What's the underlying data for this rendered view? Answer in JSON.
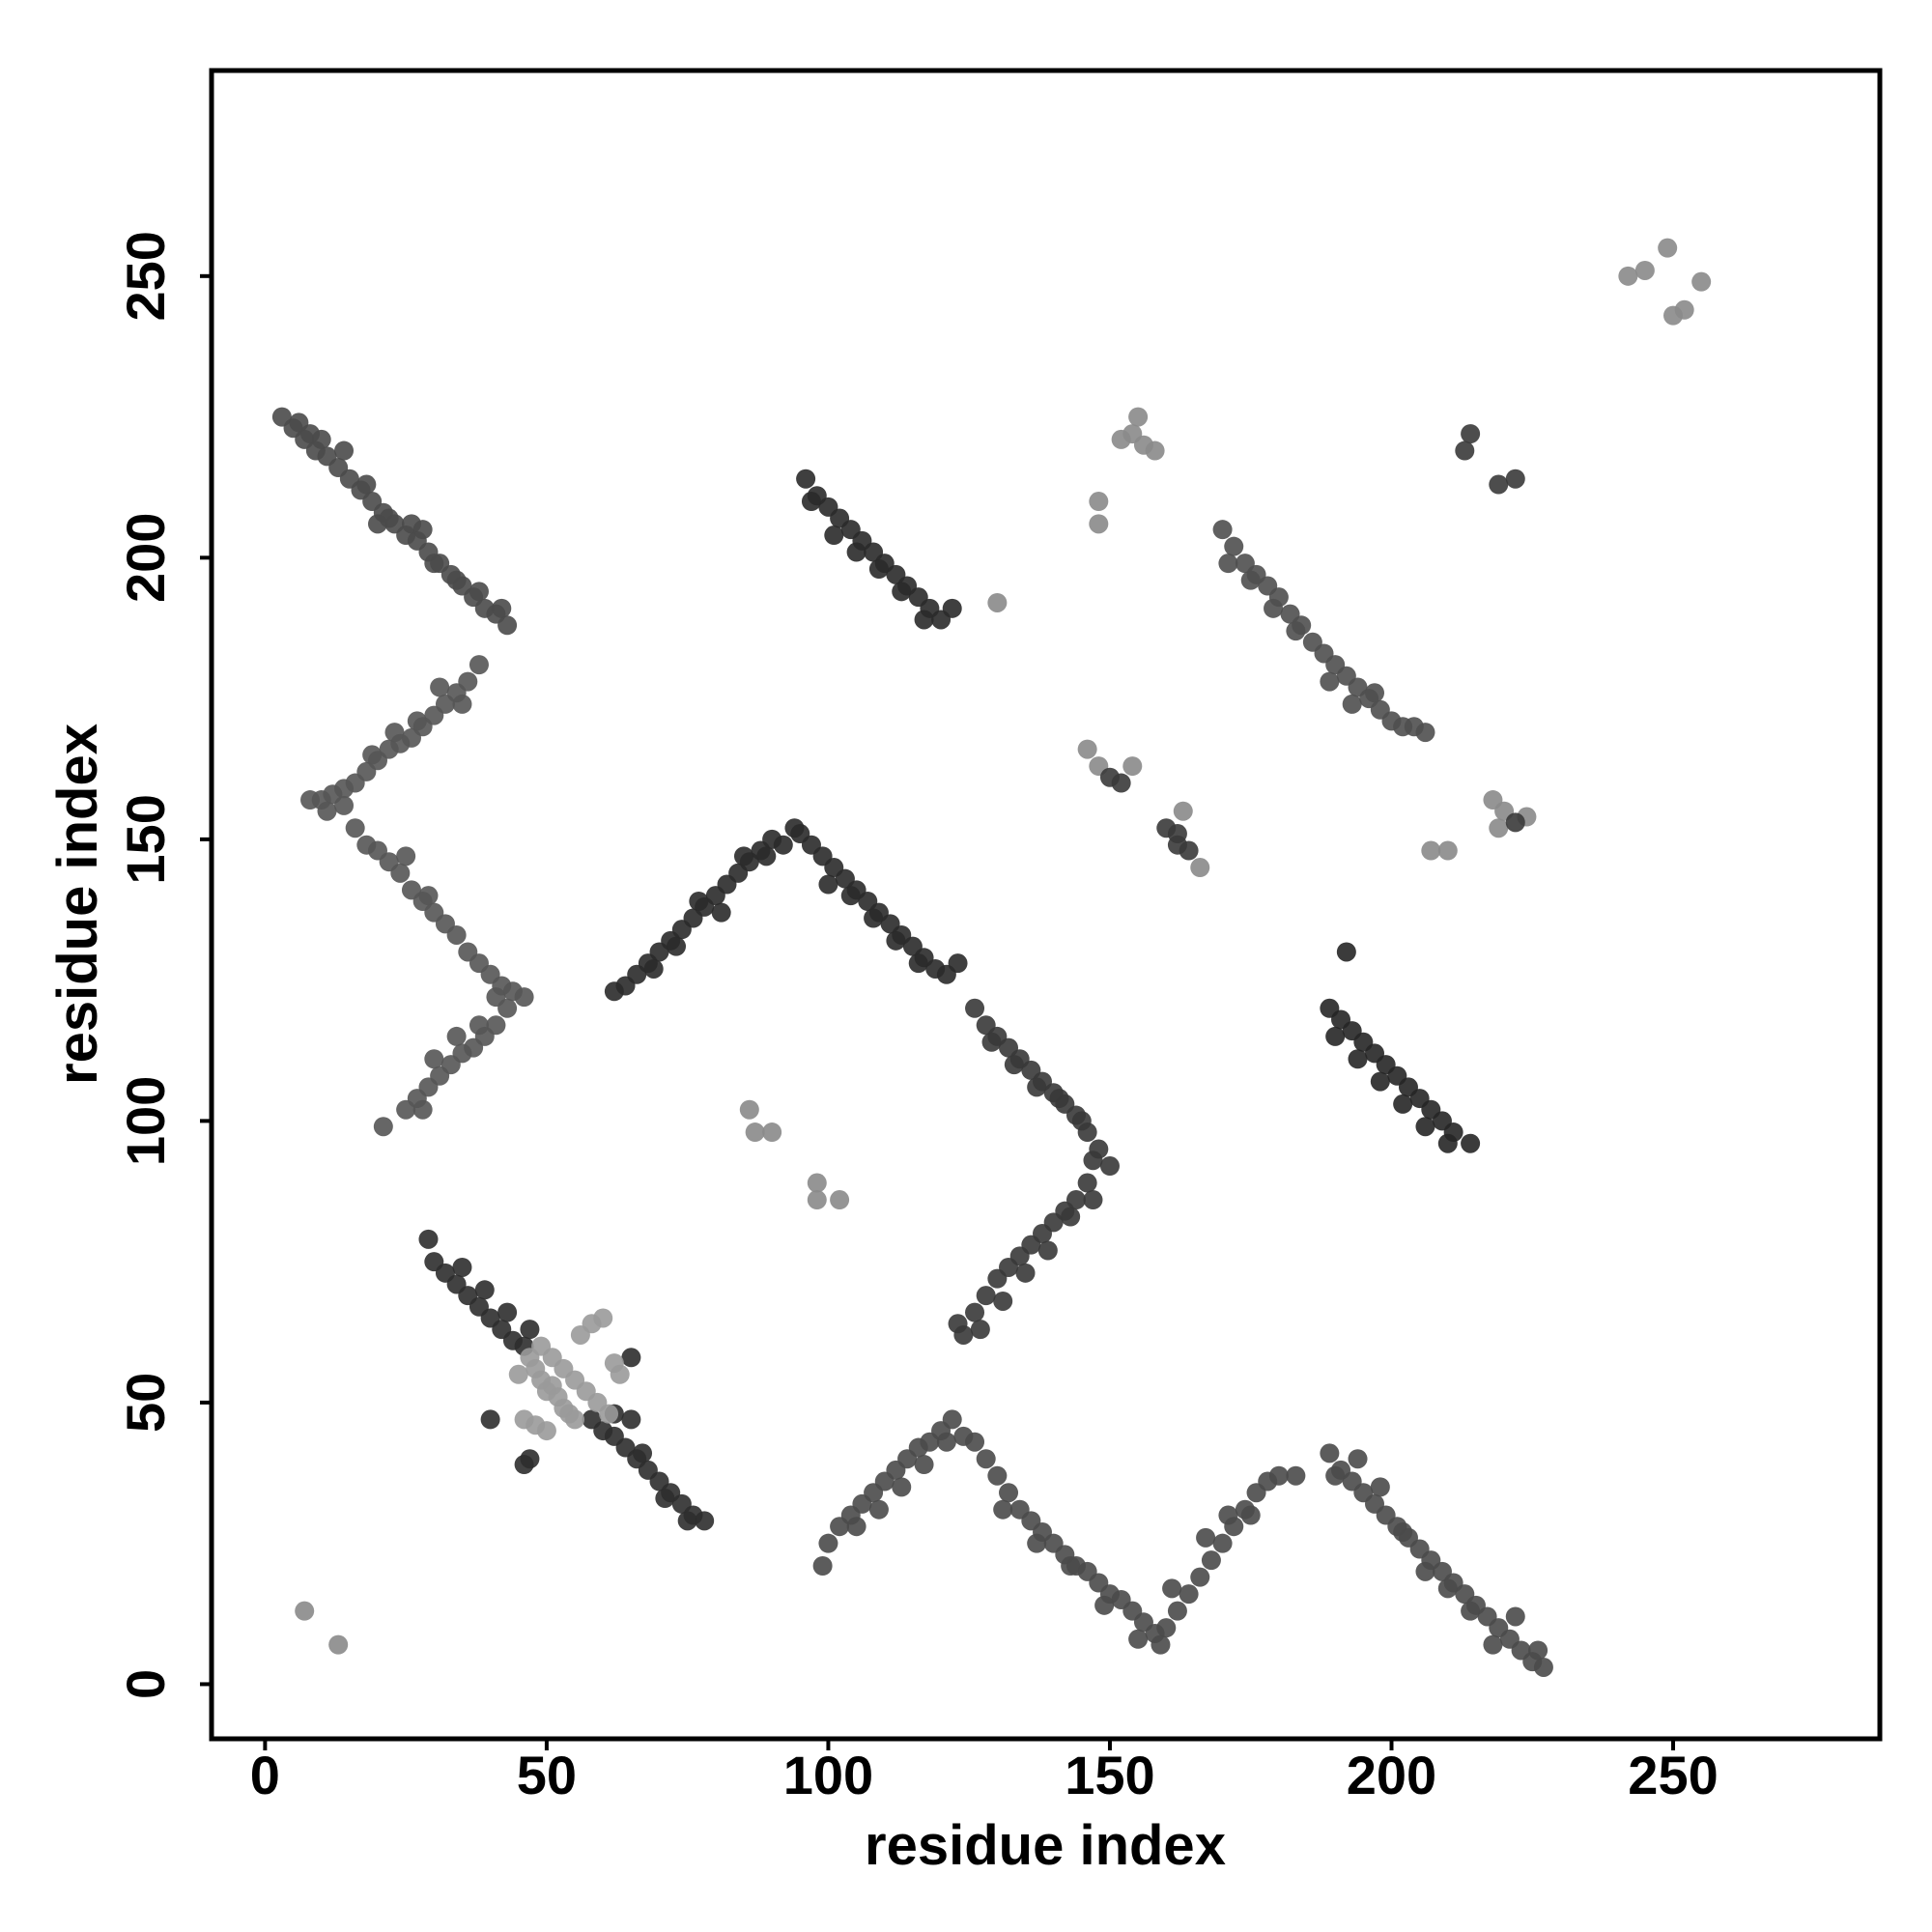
{
  "chart_data": {
    "type": "scatter",
    "xlabel": "residue index",
    "ylabel": "residue index",
    "xlim": [
      -9.5,
      286.7
    ],
    "ylim": [
      -9.7,
      286.5
    ],
    "xticks": [
      0,
      50,
      100,
      150,
      200,
      250
    ],
    "yticks": [
      0,
      50,
      100,
      150,
      200,
      250
    ],
    "grid": false,
    "series": [
      {
        "color": "#4a4a4a",
        "x": [
          3,
          5,
          7,
          9,
          11,
          13,
          15,
          17,
          19,
          21,
          23,
          25,
          27,
          29,
          31,
          33,
          35,
          37,
          39,
          41,
          43,
          6,
          10,
          14,
          18,
          22,
          26,
          30,
          34,
          38,
          42,
          8,
          20,
          28
        ],
        "y": [
          225,
          223,
          221,
          219,
          218,
          216,
          214,
          212,
          210,
          208,
          206,
          204,
          203,
          201,
          199,
          197,
          195,
          193,
          191,
          190,
          188,
          224,
          221,
          219,
          213,
          207,
          206,
          199,
          196,
          194,
          191,
          222,
          206,
          205
        ]
      },
      {
        "color": "#555555",
        "x": [
          38,
          36,
          34,
          32,
          30,
          28,
          26,
          24,
          22,
          20,
          18,
          16,
          14,
          12,
          10,
          8,
          35,
          31,
          27,
          23,
          19,
          11,
          14,
          16,
          18,
          20,
          22,
          24,
          26,
          28,
          30,
          32,
          34,
          36,
          38,
          40,
          42,
          44,
          46,
          25,
          29,
          41,
          43,
          41,
          39,
          37,
          35,
          33,
          31,
          29,
          27,
          25,
          21,
          38,
          34,
          30,
          28
        ],
        "y": [
          181,
          178,
          176,
          174,
          172,
          170,
          168,
          167,
          166,
          164,
          162,
          160,
          159,
          158,
          157,
          157,
          174,
          177,
          171,
          169,
          165,
          155,
          156,
          152,
          149,
          148,
          146,
          144,
          141,
          139,
          137,
          135,
          133,
          130,
          128,
          126,
          124,
          123,
          122,
          147,
          140,
          122,
          120,
          117,
          115,
          113,
          112,
          110,
          108,
          106,
          104,
          102,
          99,
          117,
          115,
          111,
          102
        ]
      },
      {
        "color": "#2e2e2e",
        "x": [
          29,
          30,
          32,
          34,
          36,
          38,
          40,
          42,
          44,
          46,
          39,
          35,
          43,
          47,
          58,
          60,
          62,
          64,
          66,
          68,
          70,
          72,
          74,
          76,
          78,
          62,
          65,
          67,
          71,
          75,
          40,
          47,
          46,
          65
        ],
        "y": [
          79,
          75,
          73,
          71,
          69,
          67,
          65,
          63,
          61,
          60,
          70,
          74,
          66,
          63,
          47,
          45,
          44,
          42,
          40,
          38,
          36,
          34,
          32,
          30,
          29,
          48,
          47,
          41,
          33,
          29,
          47,
          40,
          39,
          58
        ]
      },
      {
        "color": "#9a9a9a",
        "x": [
          47,
          48,
          49,
          50,
          51,
          52,
          53,
          54,
          55,
          49,
          51,
          53,
          55,
          57,
          59,
          61,
          56,
          58,
          60,
          63,
          46,
          48,
          50,
          45,
          62
        ],
        "y": [
          58,
          56,
          54,
          52,
          53,
          51,
          49,
          48,
          47,
          60,
          58,
          56,
          54,
          52,
          50,
          48,
          62,
          64,
          65,
          55,
          47,
          46,
          45,
          55,
          57
        ]
      },
      {
        "color": "#2a2a2a",
        "x": [
          62,
          64,
          66,
          68,
          70,
          72,
          74,
          76,
          78,
          80,
          82,
          84,
          86,
          88,
          90,
          92,
          94,
          69,
          73,
          77,
          81,
          85,
          89,
          95,
          97,
          99,
          101,
          103,
          105,
          107,
          109,
          111,
          113,
          115,
          117,
          119,
          121,
          123,
          100,
          104,
          108,
          112,
          116
        ],
        "y": [
          123,
          124,
          126,
          128,
          130,
          132,
          134,
          136,
          138,
          140,
          142,
          144,
          146,
          148,
          150,
          149,
          152,
          127,
          131,
          139,
          137,
          147,
          147,
          151,
          149,
          147,
          145,
          143,
          141,
          139,
          137,
          135,
          133,
          131,
          129,
          127,
          126,
          128,
          142,
          140,
          136,
          132,
          128
        ]
      },
      {
        "color": "#383838",
        "x": [
          126,
          128,
          130,
          132,
          134,
          136,
          138,
          140,
          142,
          144,
          146,
          148,
          150,
          129,
          133,
          137,
          141,
          145,
          147,
          124,
          126,
          128,
          130,
          132,
          134,
          136,
          138,
          140,
          142,
          144,
          146,
          127,
          131,
          135,
          139,
          143,
          147,
          123
        ],
        "y": [
          120,
          117,
          115,
          113,
          111,
          109,
          107,
          105,
          103,
          101,
          98,
          95,
          92,
          114,
          110,
          106,
          104,
          100,
          93,
          62,
          66,
          69,
          72,
          74,
          76,
          78,
          80,
          82,
          84,
          86,
          89,
          63,
          68,
          73,
          77,
          83,
          86,
          64
        ]
      },
      {
        "color": "#2a2a2a",
        "x": [
          96,
          98,
          100,
          102,
          104,
          106,
          108,
          110,
          112,
          114,
          116,
          118,
          120,
          97,
          101,
          105,
          109,
          113,
          117,
          122
        ],
        "y": [
          214,
          211,
          209,
          207,
          205,
          203,
          201,
          199,
          197,
          195,
          193,
          191,
          189,
          210,
          204,
          201,
          198,
          194,
          189,
          191
        ]
      },
      {
        "color": "#4f4f4f",
        "x": [
          170,
          172,
          174,
          176,
          178,
          180,
          182,
          184,
          186,
          188,
          190,
          192,
          194,
          196,
          198,
          200,
          202,
          206,
          171,
          175,
          179,
          183,
          189,
          193,
          197,
          204
        ],
        "y": [
          205,
          202,
          199,
          197,
          195,
          193,
          190,
          188,
          185,
          183,
          181,
          179,
          177,
          175,
          173,
          171,
          170,
          169,
          199,
          196,
          191,
          187,
          178,
          174,
          176,
          170
        ]
      },
      {
        "color": "#262626",
        "x": [
          189,
          191,
          193,
          195,
          197,
          199,
          201,
          203,
          205,
          207,
          209,
          211,
          214,
          190,
          194,
          198,
          202,
          206,
          210,
          192
        ],
        "y": [
          120,
          118,
          116,
          114,
          112,
          110,
          108,
          106,
          104,
          102,
          100,
          98,
          96,
          115,
          111,
          107,
          103,
          99,
          96,
          130
        ]
      },
      {
        "color": "#4a4a4a",
        "x": [
          99,
          100,
          102,
          104,
          106,
          108,
          110,
          112,
          114,
          116,
          118,
          120,
          122,
          105,
          109,
          113,
          117,
          121,
          124,
          126,
          128,
          130,
          132,
          134,
          136,
          138,
          140,
          142,
          144,
          146,
          148,
          150,
          152,
          154,
          156,
          158,
          160,
          162,
          164,
          166,
          168,
          170,
          172,
          174,
          176,
          178,
          180,
          131,
          137,
          143,
          149,
          155,
          159,
          161,
          167,
          171,
          175,
          183,
          189,
          191,
          193,
          195,
          197,
          199,
          201,
          203,
          205,
          207,
          209,
          211,
          213,
          215,
          217,
          219,
          221,
          223,
          225,
          227,
          190,
          194,
          198,
          202,
          206,
          210,
          214,
          218,
          222,
          226
        ],
        "y": [
          21,
          25,
          28,
          30,
          32,
          34,
          36,
          38,
          40,
          42,
          43,
          45,
          47,
          28,
          31,
          35,
          39,
          43,
          44,
          43,
          40,
          37,
          34,
          31,
          29,
          27,
          25,
          23,
          21,
          20,
          18,
          16,
          15,
          13,
          11,
          9,
          10,
          13,
          16,
          19,
          22,
          25,
          28,
          31,
          34,
          36,
          37,
          31,
          25,
          21,
          14,
          8,
          7,
          17,
          26,
          30,
          30,
          37,
          41,
          38,
          36,
          34,
          32,
          30,
          28,
          26,
          24,
          22,
          20,
          18,
          16,
          14,
          12,
          10,
          8,
          6,
          4,
          3,
          37,
          40,
          35,
          27,
          20,
          17,
          13,
          7,
          12,
          6
        ]
      },
      {
        "color": "#8a8a8a",
        "x": [
          154,
          156,
          152,
          158,
          155,
          148,
          148,
          130,
          146,
          148,
          154,
          163,
          166,
          207,
          210,
          218,
          220,
          224,
          219,
          242,
          245,
          249,
          250,
          252,
          255,
          7,
          13,
          86,
          87,
          90,
          98,
          98,
          102
        ],
        "y": [
          222,
          220,
          221,
          219,
          225,
          210,
          206,
          192,
          166,
          163,
          163,
          155,
          145,
          148,
          148,
          157,
          155,
          154,
          152,
          250,
          251,
          255,
          243,
          244,
          249,
          13,
          7,
          102,
          98,
          98,
          89,
          86,
          86
        ]
      },
      {
        "color": "#3a3a3a",
        "x": [
          150,
          152,
          160,
          162,
          164,
          162,
          222,
          214,
          213,
          219,
          222
        ],
        "y": [
          161,
          160,
          152,
          151,
          148,
          149,
          153,
          222,
          219,
          213,
          214
        ]
      }
    ]
  }
}
